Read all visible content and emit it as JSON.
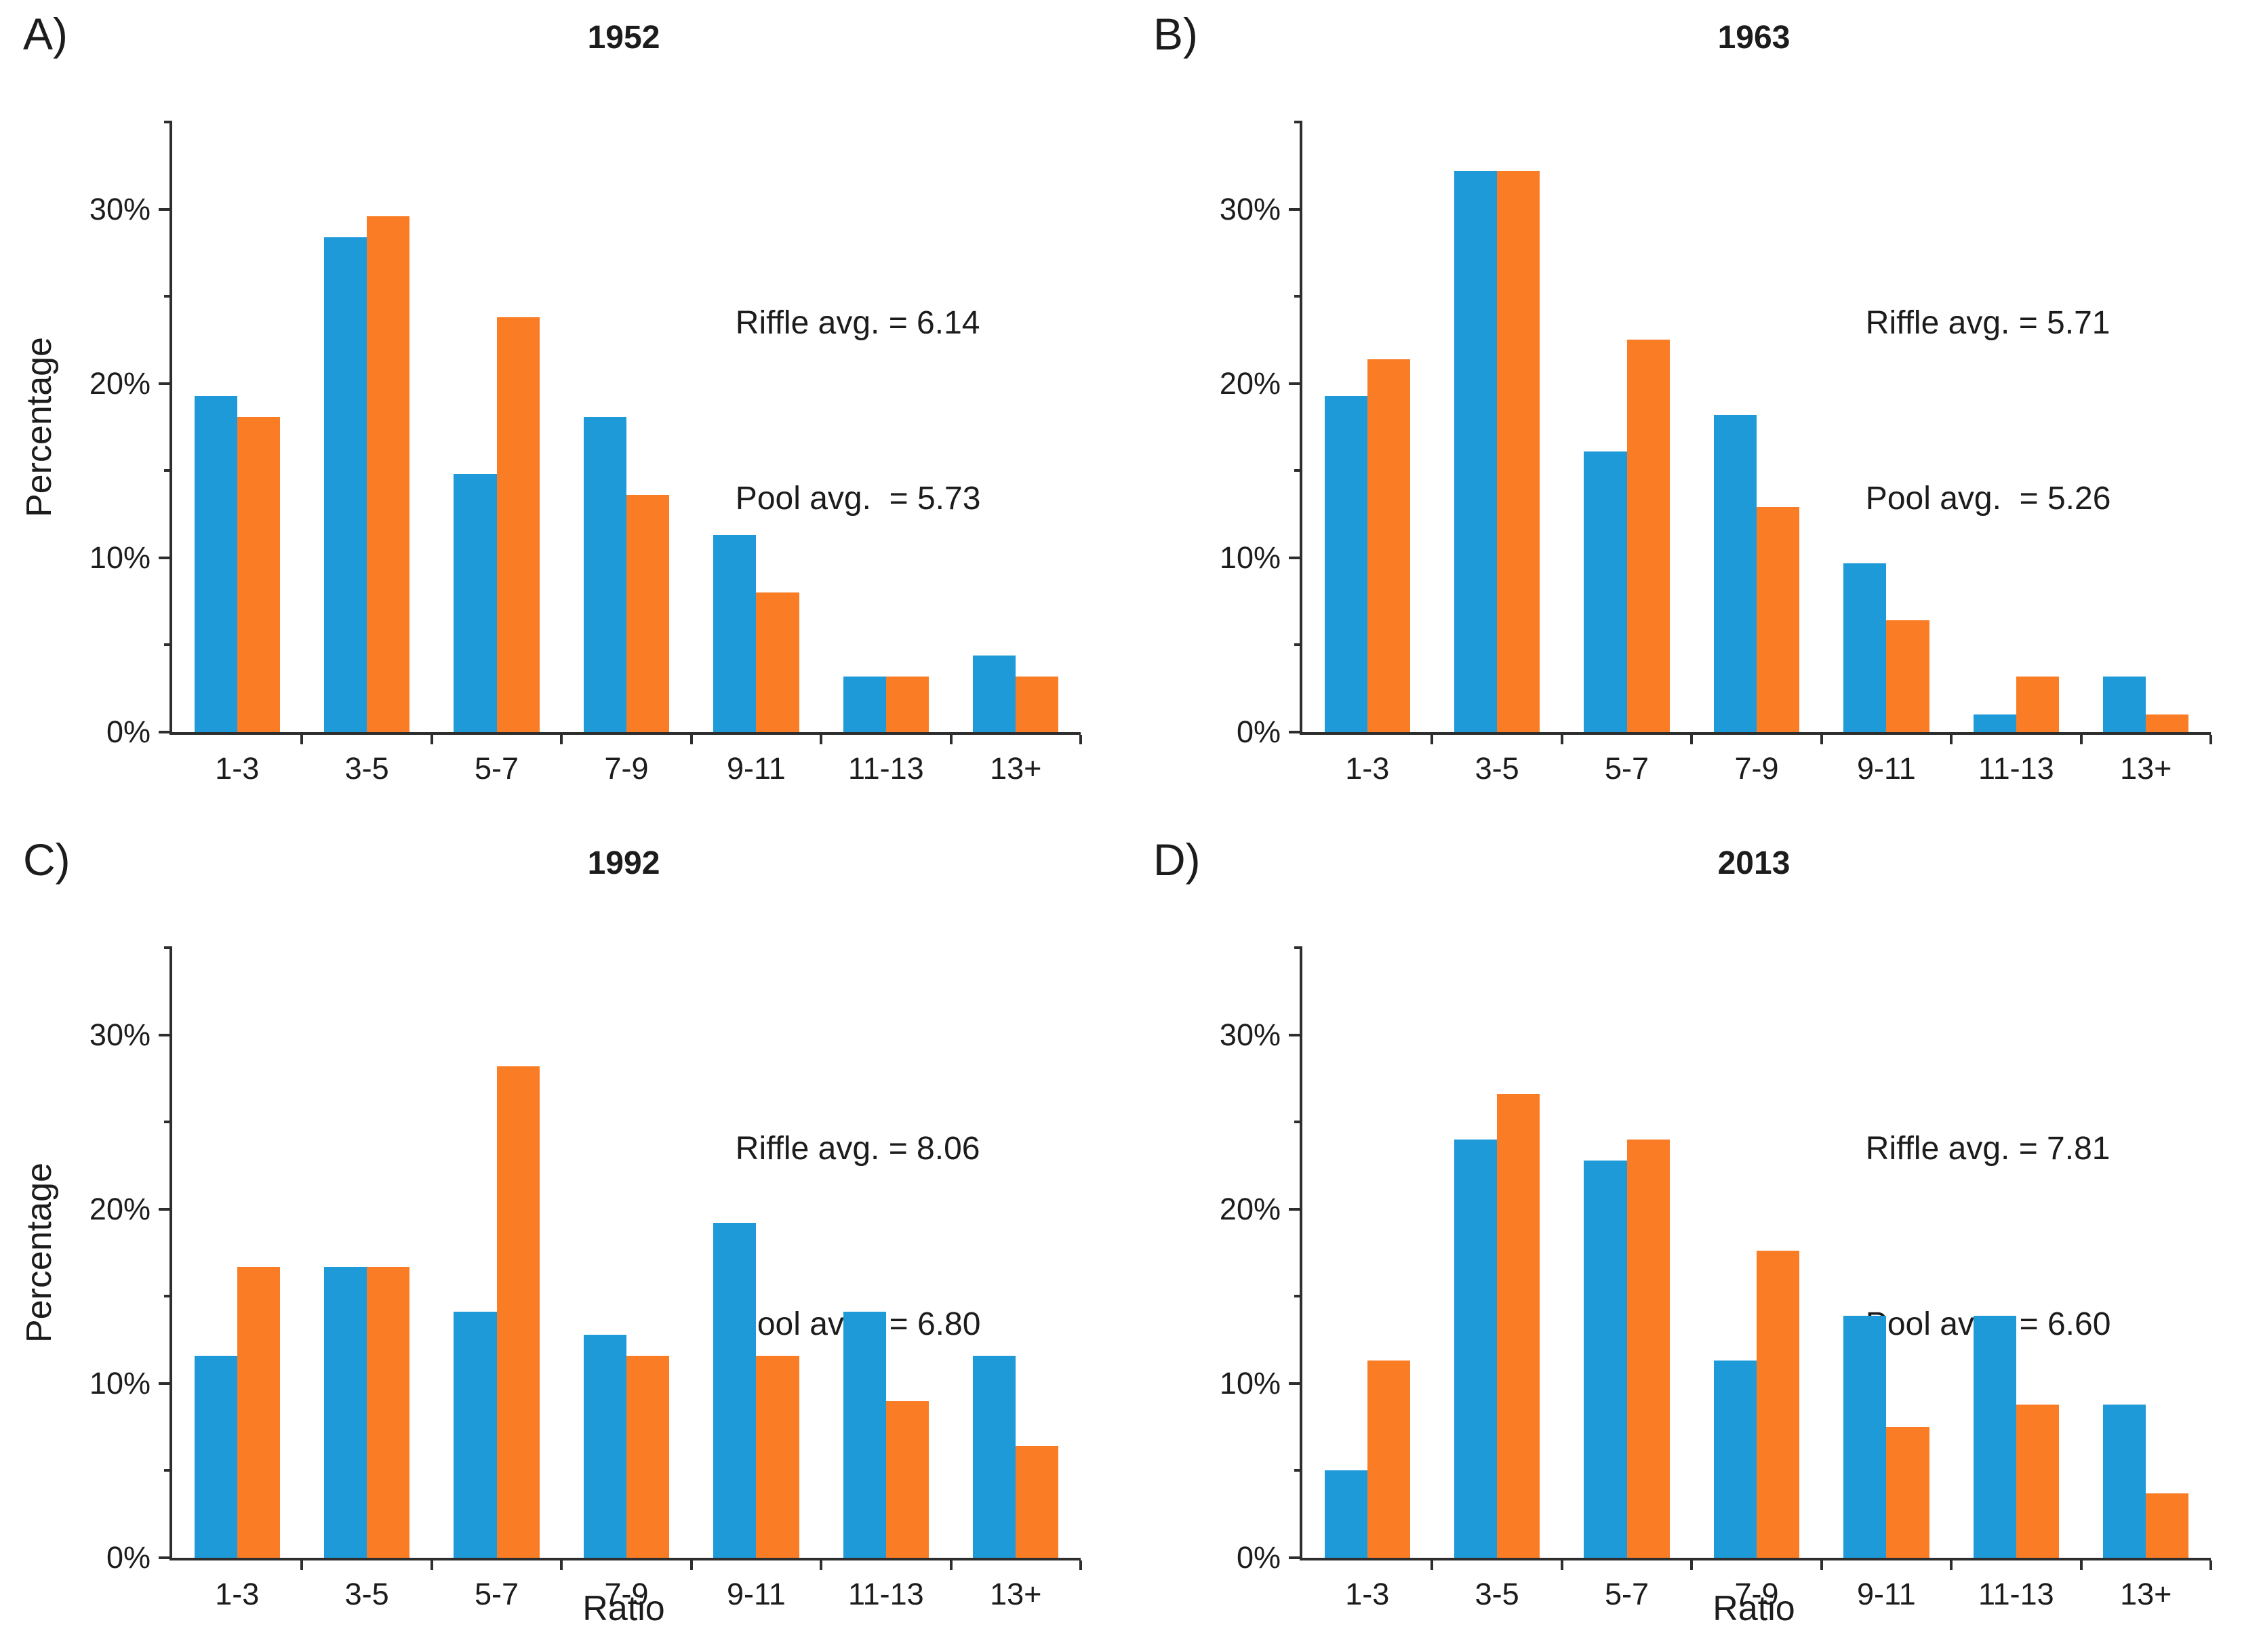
{
  "figure": {
    "background": "#ffffff",
    "axis_color": "#2e2e2e",
    "text_color": "#1c1c1c",
    "series_colors": {
      "riffle": "#1f9ad9",
      "pool": "#fa7d25"
    },
    "y_ticks": [
      {
        "v": 0,
        "label": "0%"
      },
      {
        "v": 10,
        "label": "10%"
      },
      {
        "v": 20,
        "label": "20%"
      },
      {
        "v": 30,
        "label": "30%"
      }
    ],
    "y_minor_ticks": [
      5,
      15,
      25,
      35
    ],
    "y_max": 35
  },
  "chart_data": [
    {
      "type": "bar",
      "panel_letter": "A)",
      "title": "1952",
      "categories": [
        "1-3",
        "3-5",
        "5-7",
        "7-9",
        "9-11",
        "11-13",
        "13+"
      ],
      "series": [
        {
          "name": "Riffle",
          "color": "#1f9ad9",
          "values": [
            19.3,
            28.4,
            14.8,
            18.1,
            11.3,
            3.2,
            4.4
          ]
        },
        {
          "name": "Pool",
          "color": "#fa7d25",
          "values": [
            18.1,
            29.6,
            23.8,
            13.6,
            8.0,
            3.2,
            3.2
          ]
        }
      ],
      "annotations": [
        "Riffle avg. = 6.14",
        "Pool avg.  = 5.73"
      ],
      "xlabel": "",
      "ylabel": "Percentage",
      "ylim": [
        0,
        35
      ],
      "grid": false,
      "legend": "none"
    },
    {
      "type": "bar",
      "panel_letter": "B)",
      "title": "1963",
      "categories": [
        "1-3",
        "3-5",
        "5-7",
        "7-9",
        "9-11",
        "11-13",
        "13+"
      ],
      "series": [
        {
          "name": "Riffle",
          "color": "#1f9ad9",
          "values": [
            19.3,
            32.2,
            16.1,
            18.2,
            9.7,
            1.0,
            3.2
          ]
        },
        {
          "name": "Pool",
          "color": "#fa7d25",
          "values": [
            21.4,
            32.2,
            22.5,
            12.9,
            6.4,
            3.2,
            1.0
          ]
        }
      ],
      "annotations": [
        "Riffle avg. = 5.71",
        "Pool avg.  = 5.26"
      ],
      "xlabel": "",
      "ylabel": "",
      "ylim": [
        0,
        35
      ],
      "grid": false,
      "legend": "none"
    },
    {
      "type": "bar",
      "panel_letter": "C)",
      "title": "1992",
      "categories": [
        "1-3",
        "3-5",
        "5-7",
        "7-9",
        "9-11",
        "11-13",
        "13+"
      ],
      "series": [
        {
          "name": "Riffle",
          "color": "#1f9ad9",
          "values": [
            11.6,
            16.7,
            14.1,
            12.8,
            19.2,
            14.1,
            11.6
          ]
        },
        {
          "name": "Pool",
          "color": "#fa7d25",
          "values": [
            16.7,
            16.7,
            28.2,
            11.6,
            11.6,
            9.0,
            6.4
          ]
        }
      ],
      "annotations": [
        "Riffle avg. = 8.06",
        "Pool avg.  = 6.80"
      ],
      "xlabel": "Ratio",
      "ylabel": "Percentage",
      "ylim": [
        0,
        35
      ],
      "grid": false,
      "legend": "none"
    },
    {
      "type": "bar",
      "panel_letter": "D)",
      "title": "2013",
      "categories": [
        "1-3",
        "3-5",
        "5-7",
        "7-9",
        "9-11",
        "11-13",
        "13+"
      ],
      "series": [
        {
          "name": "Riffle",
          "color": "#1f9ad9",
          "values": [
            5.0,
            24.0,
            22.8,
            11.3,
            13.9,
            13.9,
            8.8
          ]
        },
        {
          "name": "Pool",
          "color": "#fa7d25",
          "values": [
            11.3,
            26.6,
            24.0,
            17.6,
            7.5,
            8.8,
            3.7
          ]
        }
      ],
      "annotations": [
        "Riffle avg. = 7.81",
        "Pool avg.  = 6.60"
      ],
      "xlabel": "Ratio",
      "ylabel": "",
      "ylim": [
        0,
        35
      ],
      "grid": false,
      "legend": "none"
    }
  ]
}
